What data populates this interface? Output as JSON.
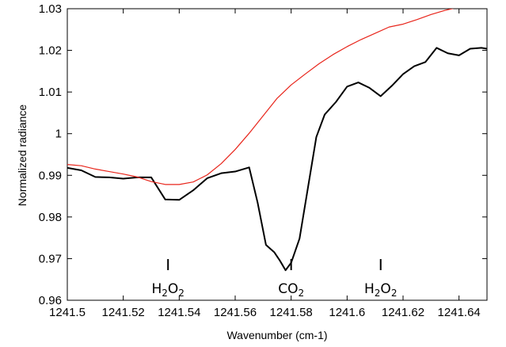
{
  "chart_data": {
    "type": "line",
    "title": "",
    "xlabel": "Wavenumber (cm-1)",
    "ylabel": "Normalized radiance",
    "xlim": [
      1241.5,
      1241.65
    ],
    "ylim": [
      0.96,
      1.03
    ],
    "grid": false,
    "legend": "none",
    "x_ticks": [
      1241.5,
      1241.52,
      1241.54,
      1241.56,
      1241.58,
      1241.6,
      1241.62,
      1241.64
    ],
    "x_tick_labels": [
      "1241.5",
      "1241.52",
      "1241.54",
      "1241.56",
      "1241.58",
      "1241.6",
      "1241.62",
      "1241.64"
    ],
    "y_ticks": [
      0.96,
      0.97,
      0.98,
      0.99,
      1.0,
      1.01,
      1.02,
      1.03
    ],
    "y_tick_labels": [
      "0.96",
      "0.97",
      "0.98",
      "0.99",
      "1",
      "1.01",
      "1.02",
      "1.03"
    ],
    "series": [
      {
        "color": "#000000",
        "x": [
          1241.5,
          1241.505,
          1241.51,
          1241.515,
          1241.52,
          1241.525,
          1241.53,
          1241.535,
          1241.54,
          1241.545,
          1241.55,
          1241.555,
          1241.56,
          1241.565,
          1241.568,
          1241.571,
          1241.574,
          1241.576,
          1241.578,
          1241.58,
          1241.583,
          1241.586,
          1241.589,
          1241.592,
          1241.596,
          1241.6,
          1241.604,
          1241.608,
          1241.612,
          1241.616,
          1241.62,
          1241.624,
          1241.628,
          1241.632,
          1241.636,
          1241.64,
          1241.644,
          1241.648,
          1241.65
        ],
        "y": [
          0.9918,
          0.9912,
          0.9896,
          0.9895,
          0.9892,
          0.9895,
          0.9895,
          0.9842,
          0.9841,
          0.9864,
          0.9893,
          0.9905,
          0.9909,
          0.9919,
          0.9835,
          0.9733,
          0.9715,
          0.9695,
          0.9672,
          0.969,
          0.9748,
          0.987,
          0.9992,
          1.0046,
          1.0076,
          1.0113,
          1.0123,
          1.011,
          1.009,
          1.0115,
          1.0143,
          1.0162,
          1.0172,
          1.0206,
          1.0193,
          1.0188,
          1.0204,
          1.0206,
          1.0204
        ]
      },
      {
        "color": "#e8251b",
        "x": [
          1241.5,
          1241.505,
          1241.51,
          1241.515,
          1241.52,
          1241.525,
          1241.53,
          1241.535,
          1241.54,
          1241.545,
          1241.55,
          1241.555,
          1241.56,
          1241.565,
          1241.57,
          1241.575,
          1241.58,
          1241.585,
          1241.59,
          1241.595,
          1241.6,
          1241.605,
          1241.61,
          1241.615,
          1241.62,
          1241.625,
          1241.63,
          1241.635,
          1241.64,
          1241.645,
          1241.65
        ],
        "y": [
          0.9926,
          0.9923,
          0.9915,
          0.9909,
          0.9903,
          0.9896,
          0.9885,
          0.9878,
          0.9878,
          0.9884,
          0.9901,
          0.9928,
          0.9962,
          1.0001,
          1.0043,
          1.0085,
          1.0117,
          1.0143,
          1.0168,
          1.019,
          1.0209,
          1.0226,
          1.0241,
          1.0256,
          1.0263,
          1.0274,
          1.0286,
          1.0296,
          1.0304,
          1.0309,
          1.0312
        ]
      }
    ],
    "annotations": [
      {
        "x": 1241.536,
        "main": "H",
        "sub1": "2",
        "mid": "O",
        "sub2": "2"
      },
      {
        "x": 1241.58,
        "main": "CO",
        "sub1": "2",
        "mid": "",
        "sub2": ""
      },
      {
        "x": 1241.612,
        "main": "H",
        "sub1": "2",
        "mid": "O",
        "sub2": "2"
      }
    ]
  }
}
